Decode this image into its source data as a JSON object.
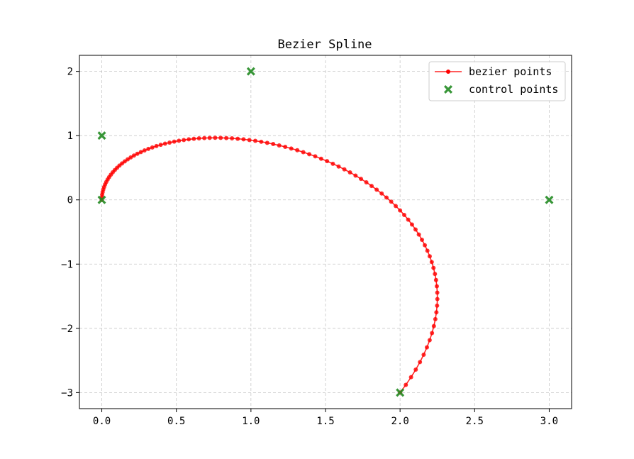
{
  "chart_data": {
    "type": "line",
    "title": "Bezier Spline",
    "xlabel": "",
    "ylabel": "",
    "xlim": [
      -0.15,
      3.15
    ],
    "ylim": [
      -3.25,
      2.25
    ],
    "xticks": [
      0.0,
      0.5,
      1.0,
      1.5,
      2.0,
      2.5,
      3.0
    ],
    "xtick_labels": [
      "0.0",
      "0.5",
      "1.0",
      "1.5",
      "2.0",
      "2.5",
      "3.0"
    ],
    "yticks": [
      -3,
      -2,
      -1,
      0,
      1,
      2
    ],
    "ytick_labels": [
      "−3",
      "−2",
      "−1",
      "0",
      "1",
      "2"
    ],
    "grid": true,
    "legend_position": "top-right",
    "bezier": {
      "control_points": [
        [
          0,
          0
        ],
        [
          0,
          1
        ],
        [
          1,
          2
        ],
        [
          3,
          0
        ],
        [
          2,
          -3
        ]
      ],
      "num_points": 100
    },
    "series": [
      {
        "name": "bezier points",
        "type": "line",
        "marker": "circle",
        "color": "#ff0000",
        "note_ref": "bezier"
      },
      {
        "name": "control points",
        "type": "scatter",
        "marker": "x-filled",
        "color": "#228b22",
        "x": [
          0,
          0,
          1,
          3,
          2
        ],
        "y": [
          0,
          1,
          2,
          0,
          -3
        ]
      }
    ]
  }
}
